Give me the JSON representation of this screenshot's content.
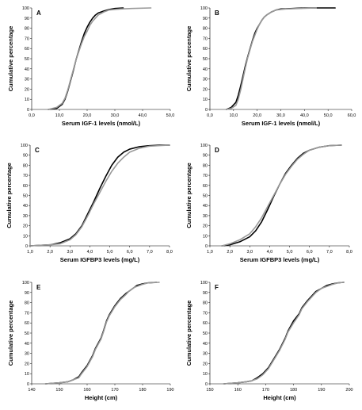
{
  "chart_data": [
    {
      "type": "line",
      "panel_label": "A",
      "xlabel": "Serum IGF-1 levels (nmol/L)",
      "ylabel": "Cumulative percentage",
      "xlim": [
        0,
        50
      ],
      "ylim": [
        0,
        100
      ],
      "xticks": [
        "0,0",
        "10,0",
        "20,0",
        "30,0",
        "40,0",
        "50,0"
      ],
      "yticks": [
        "0",
        "10",
        "20",
        "30",
        "40",
        "50",
        "60",
        "70",
        "80",
        "90",
        "100"
      ],
      "legend": "none",
      "series": [
        {
          "color": "#000000",
          "x": [
            6,
            9,
            11,
            12,
            13,
            14,
            15,
            16,
            17,
            18,
            19,
            20,
            21,
            22,
            23,
            24,
            26,
            28,
            30,
            33
          ],
          "y": [
            0,
            1,
            5,
            10,
            18,
            28,
            38,
            49,
            58,
            67,
            75,
            81,
            86,
            90,
            93,
            95,
            97,
            98.5,
            99.5,
            100
          ]
        },
        {
          "color": "#999999",
          "x": [
            6,
            9,
            11,
            12,
            13,
            14,
            15,
            16,
            17,
            18,
            19,
            20,
            21,
            22,
            23,
            24,
            26,
            28,
            32,
            36,
            43
          ],
          "y": [
            0,
            2,
            6,
            11,
            19,
            29,
            39,
            49,
            57,
            65,
            72,
            77,
            83,
            87,
            90,
            93,
            96,
            98,
            99,
            99.5,
            100
          ]
        }
      ]
    },
    {
      "type": "line",
      "panel_label": "B",
      "xlabel": "Serum IGF-1 levels (nmol/L)",
      "ylabel": "Cumulative percentage",
      "xlim": [
        0,
        60
      ],
      "ylim": [
        0,
        100
      ],
      "xticks": [
        "0,0",
        "10,0",
        "20,0",
        "30,0",
        "40,0",
        "50,0",
        "60,0"
      ],
      "yticks": [
        "0",
        "10",
        "20",
        "30",
        "40",
        "50",
        "60",
        "70",
        "80",
        "90",
        "100"
      ],
      "legend": "none",
      "series": [
        {
          "color": "#000000",
          "x": [
            7,
            9,
            11,
            12,
            13,
            14,
            15,
            16,
            17,
            18,
            19,
            20,
            21,
            22,
            23,
            24,
            26,
            28,
            30,
            35,
            40,
            53
          ],
          "y": [
            0,
            2,
            7,
            14,
            23,
            33,
            43,
            52,
            60,
            68,
            75,
            80,
            84,
            88,
            91,
            93,
            96,
            98,
            99,
            99.5,
            100,
            100
          ]
        },
        {
          "color": "#999999",
          "x": [
            7,
            9,
            11,
            12,
            13,
            14,
            15,
            16,
            17,
            18,
            19,
            20,
            21,
            22,
            23,
            24,
            26,
            28,
            32,
            38,
            45
          ],
          "y": [
            0,
            1,
            4,
            10,
            19,
            30,
            41,
            51,
            59,
            67,
            73,
            79,
            84,
            88,
            91,
            93,
            96,
            98,
            99,
            99.5,
            100
          ]
        }
      ]
    },
    {
      "type": "line",
      "panel_label": "C",
      "xlabel": "Serum IGFBP3 levels (mg/L)",
      "ylabel": "Cumulative percentage",
      "xlim": [
        1,
        8
      ],
      "ylim": [
        0,
        100
      ],
      "xticks": [
        "1,0",
        "2,0",
        "3,0",
        "4,0",
        "5,0",
        "6,0",
        "7,0",
        "8,0"
      ],
      "yticks": [
        "0",
        "10",
        "20",
        "30",
        "40",
        "50",
        "60",
        "70",
        "80",
        "90",
        "100"
      ],
      "legend": "none",
      "series": [
        {
          "color": "#000000",
          "x": [
            1.0,
            2.0,
            2.5,
            3.0,
            3.3,
            3.6,
            3.9,
            4.2,
            4.5,
            4.8,
            5.1,
            5.4,
            5.7,
            6.0,
            6.5,
            7.0,
            7.5,
            8.0
          ],
          "y": [
            0,
            1,
            3,
            7,
            12,
            20,
            32,
            44,
            57,
            69,
            80,
            88,
            93,
            96,
            98.5,
            99.5,
            100,
            100
          ]
        },
        {
          "color": "#999999",
          "x": [
            1.0,
            2.0,
            2.5,
            3.0,
            3.3,
            3.6,
            3.9,
            4.2,
            4.5,
            4.8,
            5.1,
            5.4,
            5.7,
            6.0,
            6.5,
            7.0,
            7.5,
            8.0
          ],
          "y": [
            0,
            1,
            2,
            6,
            11,
            19,
            30,
            42,
            53,
            64,
            74,
            82,
            88,
            93,
            97,
            99,
            99.5,
            100
          ]
        }
      ]
    },
    {
      "type": "line",
      "panel_label": "D",
      "xlabel": "Serum IGFBP3 levels (mg/L)",
      "ylabel": "Cumulative percentage",
      "xlim": [
        1,
        8
      ],
      "ylim": [
        0,
        100
      ],
      "xticks": [
        "1,0",
        "2,0",
        "3,0",
        "4,0",
        "5,0",
        "6,0",
        "7,0",
        "8,0"
      ],
      "yticks": [
        "0",
        "10",
        "20",
        "30",
        "40",
        "50",
        "60",
        "70",
        "80",
        "90",
        "100"
      ],
      "legend": "none",
      "series": [
        {
          "color": "#000000",
          "x": [
            1.6,
            2.0,
            2.5,
            3.0,
            3.3,
            3.6,
            3.9,
            4.2,
            4.5,
            4.8,
            5.1,
            5.4,
            5.7,
            6.0,
            6.5,
            7.0,
            7.6
          ],
          "y": [
            0,
            1,
            4,
            9,
            15,
            24,
            36,
            49,
            61,
            72,
            80,
            87,
            92,
            95,
            98,
            99.5,
            100
          ]
        },
        {
          "color": "#999999",
          "x": [
            1.6,
            2.0,
            2.5,
            3.0,
            3.3,
            3.6,
            3.9,
            4.2,
            4.5,
            4.8,
            5.1,
            5.4,
            5.7,
            6.0,
            6.5,
            7.0,
            7.6
          ],
          "y": [
            0,
            2,
            6,
            12,
            19,
            28,
            39,
            50,
            61,
            71,
            79,
            86,
            91,
            95,
            98,
            99.5,
            100
          ]
        }
      ]
    },
    {
      "type": "line",
      "panel_label": "E",
      "xlabel": "Height (cm)",
      "ylabel": "Cumulative percentage",
      "xlim": [
        140,
        190
      ],
      "ylim": [
        0,
        100
      ],
      "xticks": [
        "140",
        "150",
        "160",
        "170",
        "180",
        "190"
      ],
      "yticks": [
        "0",
        "10",
        "20",
        "30",
        "40",
        "50",
        "60",
        "70",
        "80",
        "90",
        "100"
      ],
      "legend": "none",
      "series": [
        {
          "color": "#000000",
          "x": [
            145,
            150,
            153,
            155,
            157,
            158,
            160,
            162,
            163,
            165,
            166,
            167,
            168,
            170,
            172,
            174,
            175,
            177,
            178,
            180,
            182,
            185
          ],
          "y": [
            0,
            1,
            2,
            4,
            7,
            11,
            18,
            28,
            35,
            45,
            53,
            62,
            68,
            77,
            84,
            89,
            91,
            95,
            97,
            98.5,
            99.5,
            100
          ]
        },
        {
          "color": "#999999",
          "x": [
            145,
            150,
            153,
            155,
            157,
            158,
            160,
            162,
            163,
            165,
            166,
            167,
            168,
            170,
            172,
            174,
            175,
            177,
            178,
            180,
            182,
            186
          ],
          "y": [
            0,
            1,
            2,
            4,
            6,
            10,
            17,
            27,
            34,
            44,
            52,
            61,
            67,
            76,
            83,
            88,
            91,
            95,
            96,
            98,
            99.5,
            100
          ]
        }
      ]
    },
    {
      "type": "line",
      "panel_label": "F",
      "xlabel": "Height (cm)",
      "ylabel": "Cumulative percentage",
      "xlim": [
        150,
        200
      ],
      "ylim": [
        0,
        100
      ],
      "xticks": [
        "150",
        "160",
        "170",
        "180",
        "190",
        "200"
      ],
      "yticks": [
        "0",
        "10",
        "20",
        "30",
        "40",
        "50",
        "60",
        "70",
        "80",
        "90",
        "100"
      ],
      "legend": "none",
      "series": [
        {
          "color": "#000000",
          "x": [
            155,
            160,
            163,
            165,
            167,
            169,
            171,
            173,
            175,
            177,
            178,
            180,
            182,
            183,
            185,
            187,
            188,
            190,
            192,
            194,
            196,
            198
          ],
          "y": [
            0,
            1,
            2,
            3,
            6,
            10,
            16,
            25,
            34,
            45,
            52,
            62,
            69,
            75,
            82,
            88,
            91,
            94,
            97,
            98.5,
            99.5,
            100
          ]
        },
        {
          "color": "#999999",
          "x": [
            155,
            160,
            163,
            165,
            167,
            169,
            171,
            173,
            175,
            177,
            178,
            180,
            182,
            183,
            185,
            187,
            188,
            190,
            192,
            194,
            196,
            198
          ],
          "y": [
            0,
            1,
            2,
            3,
            5,
            9,
            15,
            24,
            33,
            44,
            51,
            60,
            68,
            74,
            81,
            87,
            90,
            94,
            96,
            98,
            99.5,
            100
          ]
        }
      ]
    }
  ]
}
